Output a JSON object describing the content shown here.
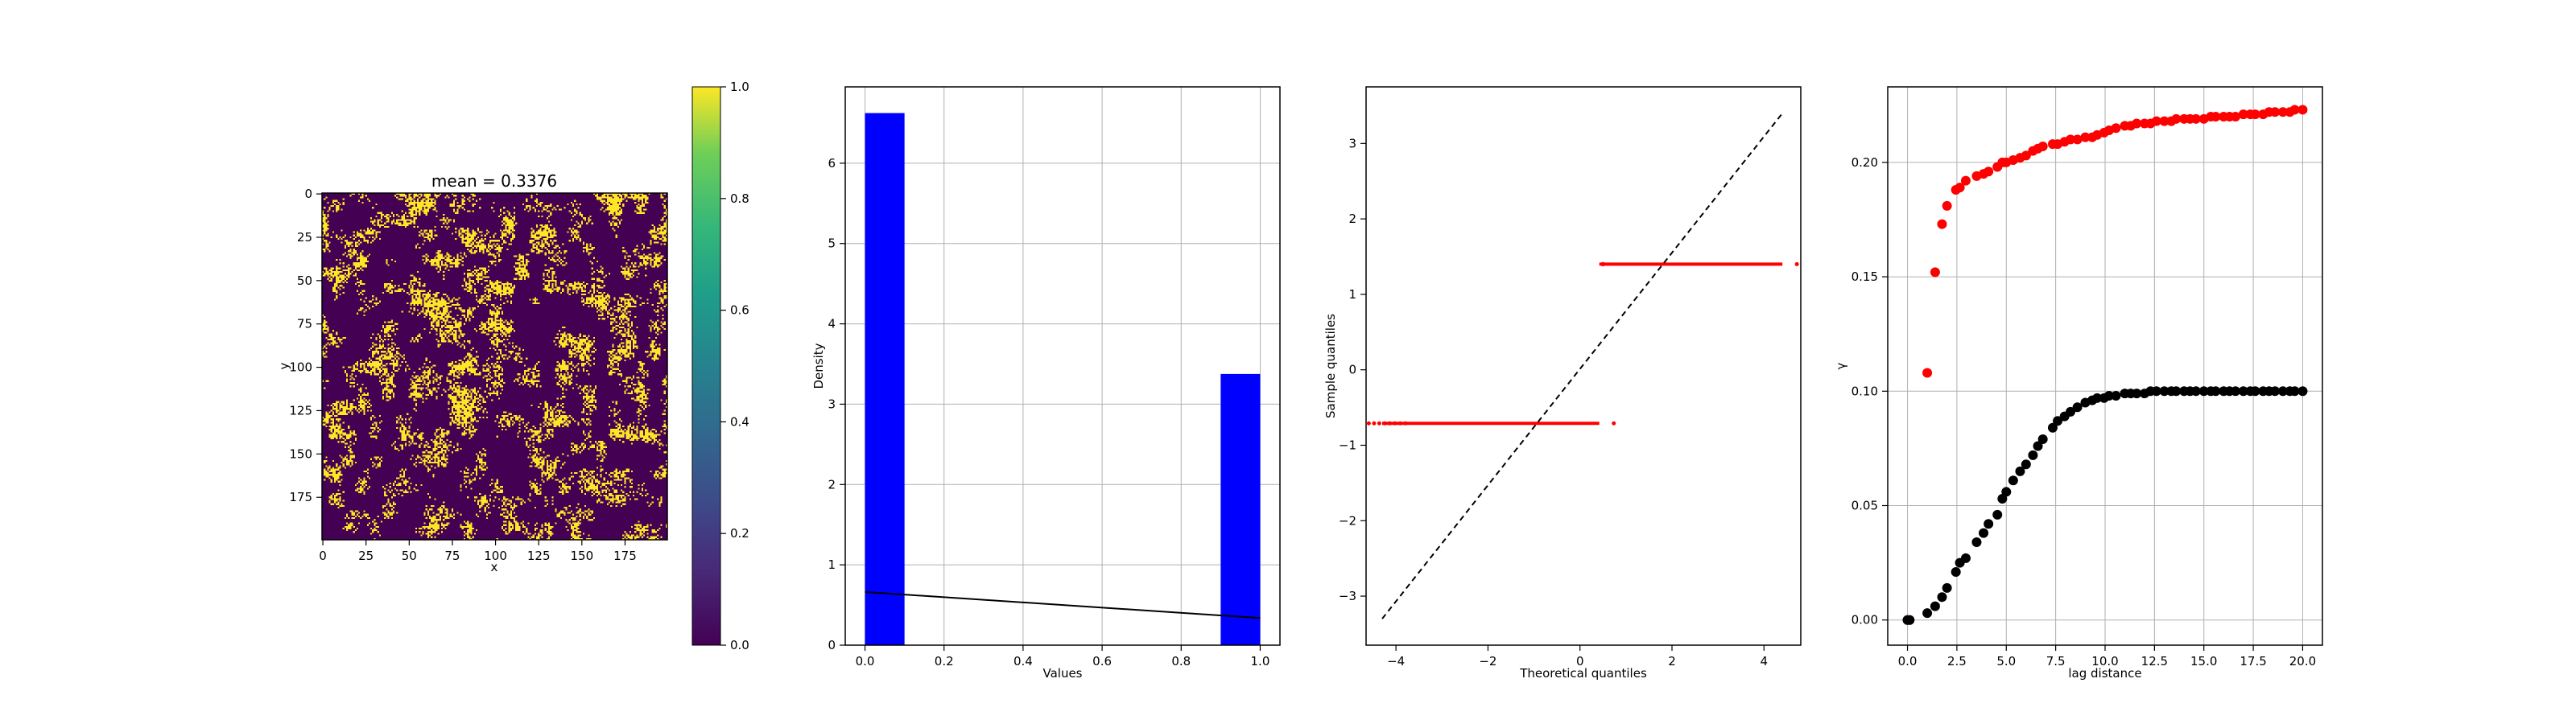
{
  "chart_data": [
    {
      "type": "heatmap",
      "title": "mean = 0.3376",
      "xlabel": "x",
      "ylabel": "y",
      "xlim": [
        0,
        199
      ],
      "ylim": [
        199,
        0
      ],
      "xticks": [
        0,
        25,
        50,
        75,
        100,
        125,
        150,
        175
      ],
      "yticks": [
        0,
        25,
        50,
        75,
        100,
        125,
        150,
        175
      ],
      "grid_size": 200,
      "value_mean": 0.3376,
      "colormap": "viridis",
      "colorbar": {
        "ticks": [
          "0.0",
          "0.2",
          "0.4",
          "0.6",
          "0.8",
          "1.0"
        ],
        "range": [
          0,
          1
        ]
      },
      "colors": {
        "low": "#440154",
        "high": "#fde725"
      }
    },
    {
      "type": "bar",
      "xlabel": "Values",
      "ylabel": "Density",
      "xlim": [
        -0.05,
        1.05
      ],
      "ylim": [
        0,
        6.95
      ],
      "xticks": [
        "0.0",
        "0.2",
        "0.4",
        "0.6",
        "0.8",
        "1.0"
      ],
      "yticks": [
        "0",
        "1",
        "2",
        "3",
        "4",
        "5",
        "6"
      ],
      "grid": true,
      "bars": [
        {
          "x0": 0.0,
          "x1": 0.1,
          "value": 6.624
        },
        {
          "x0": 0.9,
          "x1": 1.0,
          "value": 3.376
        }
      ],
      "line": {
        "x": [
          0.0,
          1.0
        ],
        "y": [
          0.6624,
          0.3376
        ]
      },
      "colors": {
        "bar": "#0000ff",
        "line": "#000000"
      }
    },
    {
      "type": "scatter",
      "xlabel": "Theoretical quantiles",
      "ylabel": "Sample quantiles",
      "xlim": [
        -4.65,
        4.8
      ],
      "ylim": [
        -3.65,
        3.75
      ],
      "xticks": [
        "−4",
        "−2",
        "0",
        "2",
        "4"
      ],
      "yticks": [
        "−3",
        "−2",
        "−1",
        "0",
        "1",
        "2",
        "3"
      ],
      "grid": false,
      "segments": [
        {
          "y": -0.71,
          "x_start": -4.3,
          "x_end": 0.42
        },
        {
          "y": 1.4,
          "x_start": 0.42,
          "x_end": 4.4
        }
      ],
      "reference_line": {
        "x": [
          -4.3,
          4.4
        ],
        "y": [
          -3.3,
          3.4
        ]
      },
      "colors": {
        "points": "#ff0000",
        "reference": "#000000"
      }
    },
    {
      "type": "scatter",
      "xlabel": "lag distance",
      "ylabel": "γ",
      "xlim": [
        -1.0,
        21.0
      ],
      "ylim": [
        -0.011,
        0.233
      ],
      "xticks": [
        "0.0",
        "2.5",
        "5.0",
        "7.5",
        "10.0",
        "12.5",
        "15.0",
        "17.5",
        "20.0"
      ],
      "yticks": [
        "0.00",
        "0.05",
        "0.10",
        "0.15",
        "0.20"
      ],
      "grid": true,
      "series": [
        {
          "color": "#ff0000",
          "x": [
            0.0,
            0.11,
            1.0,
            1.4,
            1.75,
            2.0,
            2.45,
            2.65,
            2.95,
            3.5,
            3.85,
            4.1,
            4.55,
            4.8,
            5.0,
            5.35,
            5.7,
            6.0,
            6.35,
            6.6,
            6.85,
            7.35,
            7.6,
            7.95,
            8.25,
            8.6,
            9.0,
            9.35,
            9.6,
            9.95,
            10.2,
            10.55,
            11.0,
            11.3,
            11.6,
            12.0,
            12.3,
            12.6,
            13.0,
            13.35,
            13.6,
            14.0,
            14.3,
            14.6,
            15.0,
            15.35,
            15.6,
            16.0,
            16.3,
            16.6,
            17.0,
            17.35,
            17.6,
            18.0,
            18.3,
            18.6,
            19.0,
            19.35,
            19.6,
            20.0
          ],
          "y": [
            0.0,
            0.0,
            0.108,
            0.152,
            0.173,
            0.181,
            0.188,
            0.189,
            0.192,
            0.194,
            0.195,
            0.196,
            0.198,
            0.2,
            0.2,
            0.201,
            0.202,
            0.203,
            0.205,
            0.206,
            0.207,
            0.208,
            0.208,
            0.209,
            0.21,
            0.21,
            0.211,
            0.211,
            0.212,
            0.213,
            0.214,
            0.215,
            0.216,
            0.216,
            0.217,
            0.217,
            0.217,
            0.218,
            0.218,
            0.218,
            0.219,
            0.219,
            0.219,
            0.219,
            0.219,
            0.22,
            0.22,
            0.22,
            0.22,
            0.22,
            0.221,
            0.221,
            0.221,
            0.221,
            0.222,
            0.222,
            0.222,
            0.222,
            0.223,
            0.223
          ]
        },
        {
          "color": "#000000",
          "x": [
            0.0,
            0.11,
            1.0,
            1.4,
            1.75,
            2.0,
            2.45,
            2.65,
            2.95,
            3.5,
            3.85,
            4.1,
            4.55,
            4.8,
            5.0,
            5.35,
            5.7,
            6.0,
            6.35,
            6.6,
            6.85,
            7.35,
            7.6,
            7.95,
            8.25,
            8.6,
            9.0,
            9.35,
            9.6,
            9.95,
            10.2,
            10.55,
            11.0,
            11.3,
            11.6,
            12.0,
            12.3,
            12.6,
            13.0,
            13.35,
            13.6,
            14.0,
            14.3,
            14.6,
            15.0,
            15.35,
            15.6,
            16.0,
            16.3,
            16.6,
            17.0,
            17.35,
            17.6,
            18.0,
            18.3,
            18.6,
            19.0,
            19.35,
            19.6,
            20.0
          ],
          "y": [
            0.0,
            0.0,
            0.003,
            0.006,
            0.01,
            0.014,
            0.021,
            0.025,
            0.027,
            0.034,
            0.038,
            0.042,
            0.046,
            0.053,
            0.056,
            0.061,
            0.065,
            0.068,
            0.072,
            0.076,
            0.079,
            0.084,
            0.087,
            0.089,
            0.091,
            0.093,
            0.095,
            0.096,
            0.097,
            0.097,
            0.098,
            0.098,
            0.099,
            0.099,
            0.099,
            0.099,
            0.1,
            0.1,
            0.1,
            0.1,
            0.1,
            0.1,
            0.1,
            0.1,
            0.1,
            0.1,
            0.1,
            0.1,
            0.1,
            0.1,
            0.1,
            0.1,
            0.1,
            0.1,
            0.1,
            0.1,
            0.1,
            0.1,
            0.1,
            0.1
          ]
        }
      ]
    }
  ]
}
